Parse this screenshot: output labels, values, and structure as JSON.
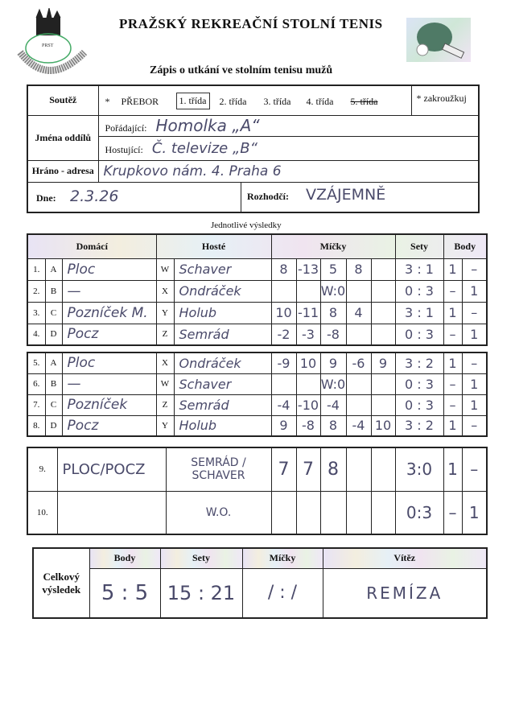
{
  "header": {
    "title": "PRAŽSKÝ REKREAČNÍ STOLNÍ TENIS",
    "subtitle": "Zápis o utkání ve stolním tenisu mužů",
    "logo_text": "PRAŽSKÝ REKREAČNÍ STOLNÍ TENIS",
    "logo_abbr": "PRST"
  },
  "form": {
    "competition_label": "Soutěž",
    "star": "*",
    "classes": [
      "PŘEBOR",
      "1. třída",
      "2. třída",
      "3. třída",
      "4. třída",
      "5. třída"
    ],
    "selected_class": "1. třída",
    "crossed_class": "5. třída",
    "note": "* zakroužkuj",
    "clubs_label": "Jména oddílů",
    "host_label": "Pořádající:",
    "host_value": "Homolka „A“",
    "guest_label": "Hostující:",
    "guest_value": "Č. televize „B“",
    "address_label": "Hráno - adresa",
    "address_value": "Krupkovo nám. 4. Praha 6",
    "date_label": "Dne:",
    "date_value": "2.3.26",
    "referee_label": "Rozhodčí:",
    "referee_value": "VZÁJEMNĚ"
  },
  "results": {
    "section_title": "Jednotlivé výsledky",
    "columns": {
      "home": "Domácí",
      "guest": "Hosté",
      "balls": "Míčky",
      "sets": "Sety",
      "points": "Body"
    },
    "block1": [
      {
        "num": "1.",
        "letter": "A",
        "home": "Ploc",
        "gl": "W",
        "guest": "Schaver",
        "balls": [
          "8",
          "-13",
          "5",
          "8",
          ""
        ],
        "sets": "3 : 1",
        "hp": "1",
        "gp": "–"
      },
      {
        "num": "2.",
        "letter": "B",
        "home": "—",
        "gl": "X",
        "guest": "Ondráček",
        "balls": [
          "",
          "",
          "W:0",
          "",
          ""
        ],
        "sets": "0 : 3",
        "hp": "–",
        "gp": "1"
      },
      {
        "num": "3.",
        "letter": "C",
        "home": "Pozníček M.",
        "gl": "Y",
        "guest": "Holub",
        "balls": [
          "10",
          "-11",
          "8",
          "4",
          ""
        ],
        "sets": "3 : 1",
        "hp": "1",
        "gp": "–"
      },
      {
        "num": "4.",
        "letter": "D",
        "home": "Pocz",
        "gl": "Z",
        "guest": "Semrád",
        "balls": [
          "-2",
          "-3",
          "-8",
          "",
          ""
        ],
        "sets": "0 : 3",
        "hp": "–",
        "gp": "1"
      }
    ],
    "block2": [
      {
        "num": "5.",
        "letter": "A",
        "home": "Ploc",
        "gl": "X",
        "guest": "Ondráček",
        "balls": [
          "-9",
          "10",
          "9",
          "-6",
          "9"
        ],
        "sets": "3 : 2",
        "hp": "1",
        "gp": "–"
      },
      {
        "num": "6.",
        "letter": "B",
        "home": "—",
        "gl": "W",
        "guest": "Schaver",
        "balls": [
          "",
          "",
          "W:0",
          "",
          ""
        ],
        "sets": "0 : 3",
        "hp": "–",
        "gp": "1"
      },
      {
        "num": "7.",
        "letter": "C",
        "home": "Pozníček",
        "gl": "Z",
        "guest": "Semrád",
        "balls": [
          "-4",
          "-10",
          "-4",
          "",
          ""
        ],
        "sets": "0 : 3",
        "hp": "–",
        "gp": "1"
      },
      {
        "num": "8.",
        "letter": "D",
        "home": "Pocz",
        "gl": "Y",
        "guest": "Holub",
        "balls": [
          "9",
          "-8",
          "8",
          "-4",
          "10"
        ],
        "sets": "3 : 2",
        "hp": "1",
        "gp": "–"
      }
    ],
    "doubles": [
      {
        "num": "9.",
        "home": "PLOC/POCZ",
        "guest": "SEMRÁD / SCHAVER",
        "balls": [
          "7",
          "7",
          "8",
          "",
          ""
        ],
        "sets": "3:0",
        "hp": "1",
        "gp": "–"
      },
      {
        "num": "10.",
        "home": "",
        "guest": "W.O.",
        "balls": [
          "",
          "",
          "",
          "",
          ""
        ],
        "sets": "0:3",
        "hp": "–",
        "gp": "1"
      }
    ]
  },
  "total": {
    "label": "Celkový výsledek",
    "cols": {
      "points": "Body",
      "sets": "Sety",
      "balls": "Míčky",
      "winner": "Vítěz"
    },
    "points": "5 : 5",
    "sets": "15 : 21",
    "balls": "/ : /",
    "winner": "REMÍZA"
  }
}
